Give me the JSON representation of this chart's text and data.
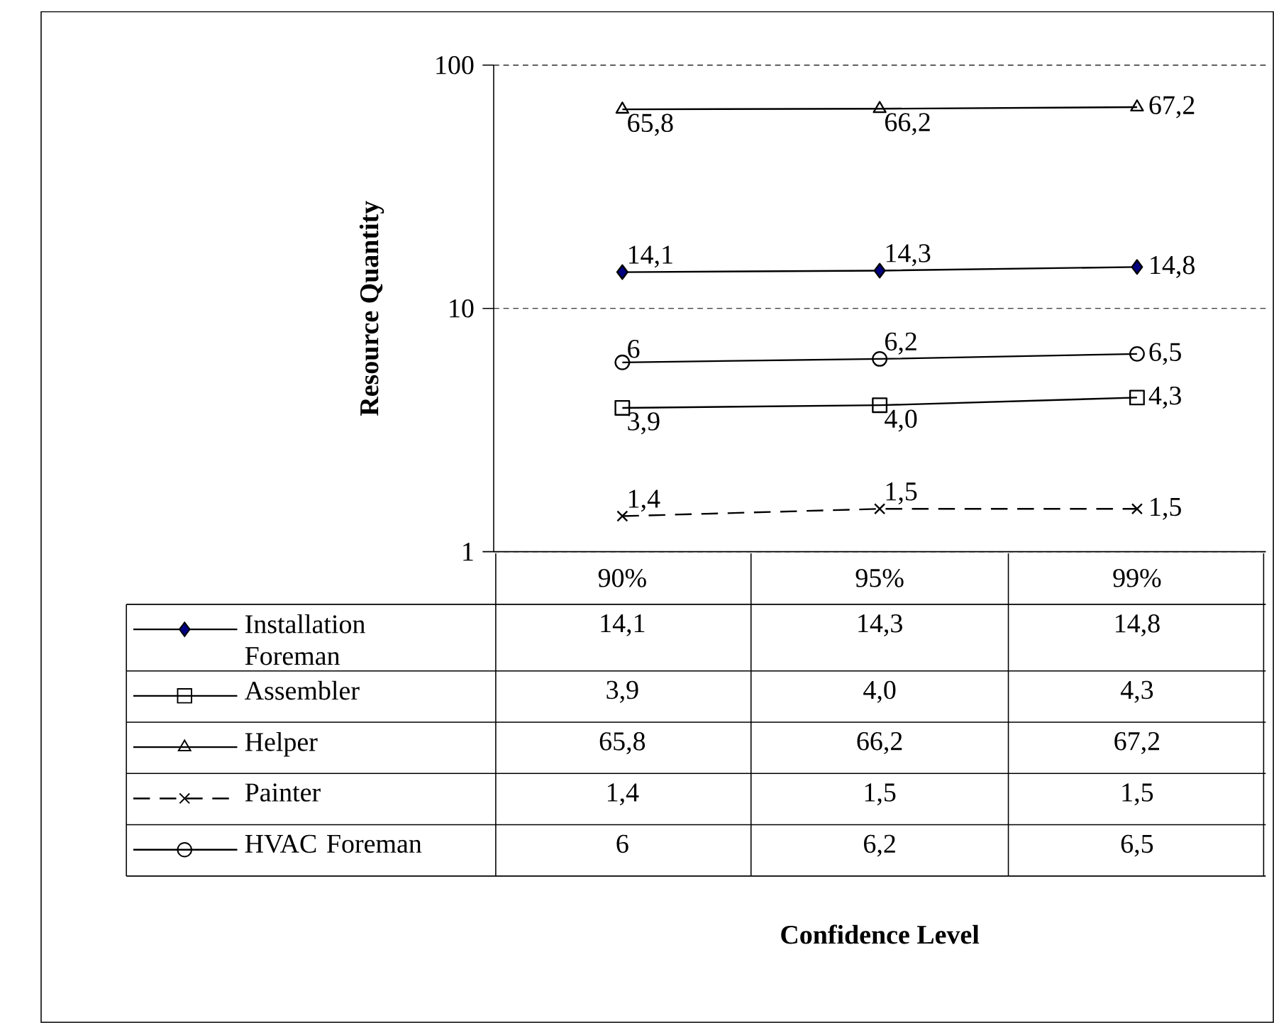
{
  "chart_data": {
    "type": "line",
    "ylabel": "Resource Quantity",
    "annotations": [
      "Confidence Level"
    ],
    "categories": [
      "90%",
      "95%",
      "99%"
    ],
    "log": true,
    "ylim": [
      1,
      100
    ],
    "yticks": [
      1,
      10,
      100
    ],
    "grid": "y",
    "legend": "bottom",
    "series": [
      {
        "name": "Installation Foreman",
        "color": "#000080",
        "marker": "diamond",
        "values": [
          14.1,
          14.3,
          14.8
        ],
        "value_labels": [
          "14,1",
          "14,3",
          "14,8"
        ]
      },
      {
        "name": "Assembler",
        "color": "#000000",
        "marker": "square",
        "values": [
          3.9,
          4.0,
          4.3
        ],
        "value_labels": [
          "3,9",
          "4,0",
          "4,3"
        ]
      },
      {
        "name": "Helper",
        "color": "#000000",
        "marker": "triangle",
        "values": [
          65.8,
          66.2,
          67.2
        ],
        "value_labels": [
          "65,8",
          "66,2",
          "67,2"
        ]
      },
      {
        "name": "Painter",
        "color": "#000000",
        "marker": "cross",
        "line_style": "dashed",
        "values": [
          1.4,
          1.5,
          1.5
        ],
        "value_labels": [
          "1,4",
          "1,5",
          "1,5"
        ]
      },
      {
        "name": "HVAC Foreman",
        "color": "#000000",
        "marker": "circle",
        "values": [
          6,
          6.2,
          6.5
        ],
        "value_labels": [
          "6",
          "6,2",
          "6,5"
        ]
      }
    ]
  }
}
